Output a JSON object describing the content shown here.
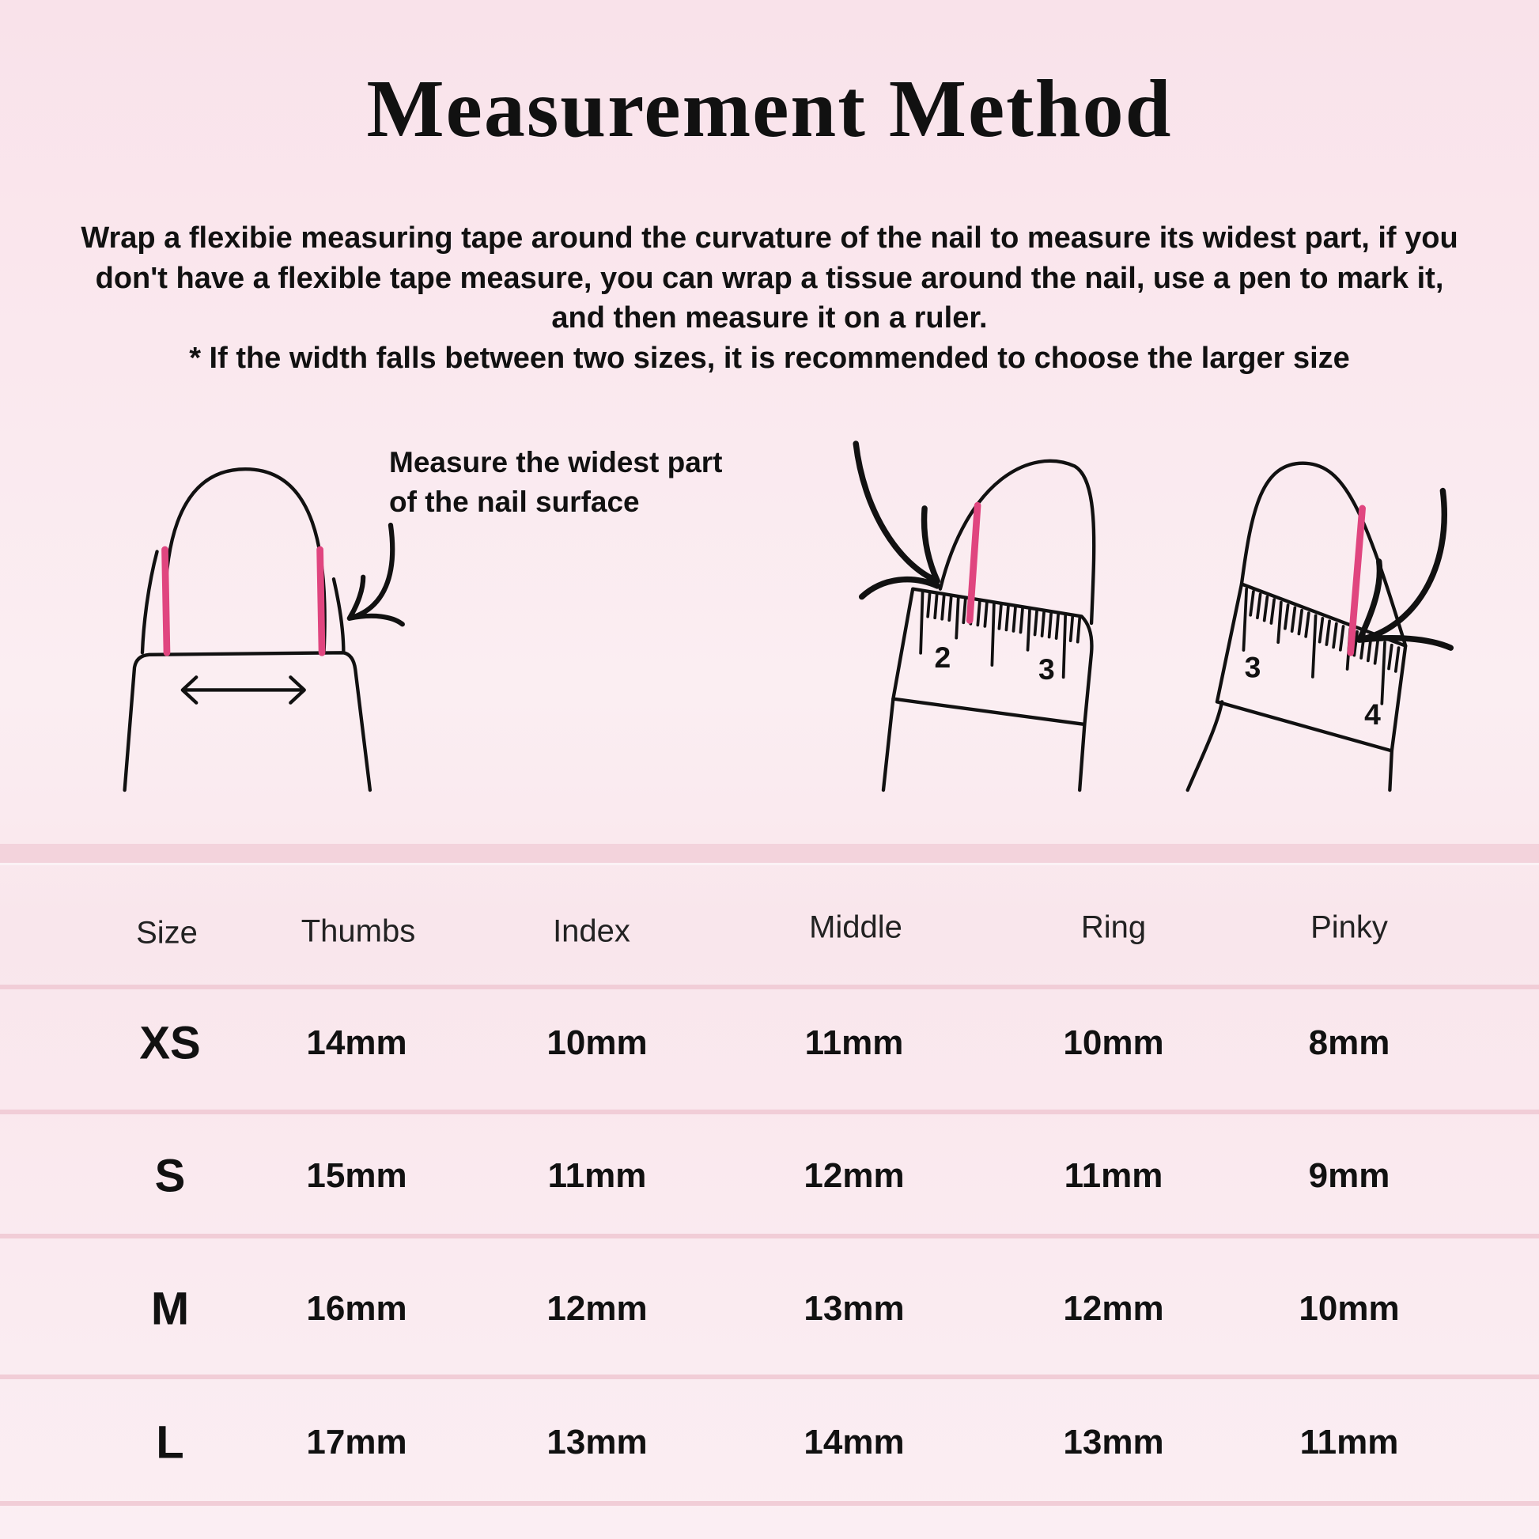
{
  "title": "Measurement Method",
  "instructions": [
    "Wrap a flexibie measuring tape around the curvature of the nail to measure its widest part, if you",
    "don't have a flexible tape measure, you can wrap a tissue around the nail, use a pen to mark it,",
    "and then measure it on a ruler.",
    "* If the width falls between two sizes, it is recommended to choose the larger size"
  ],
  "illustration": {
    "label_line1": "Measure the widest part",
    "label_line2": "of the nail surface",
    "ruler1_numbers": [
      "2",
      "3"
    ],
    "ruler2_numbers": [
      "3",
      "4"
    ],
    "accent_color": "#e0457f"
  },
  "table": {
    "headers": [
      "Size",
      "Thumbs",
      "Index",
      "Middle",
      "Ring",
      "Pinky"
    ],
    "rows": [
      {
        "size": "XS",
        "values": [
          "14mm",
          "10mm",
          "11mm",
          "10mm",
          "8mm"
        ]
      },
      {
        "size": "S",
        "values": [
          "15mm",
          "11mm",
          "12mm",
          "11mm",
          "9mm"
        ]
      },
      {
        "size": "M",
        "values": [
          "16mm",
          "12mm",
          "13mm",
          "12mm",
          "10mm"
        ]
      },
      {
        "size": "L",
        "values": [
          "17mm",
          "13mm",
          "14mm",
          "13mm",
          "11mm"
        ]
      }
    ]
  }
}
